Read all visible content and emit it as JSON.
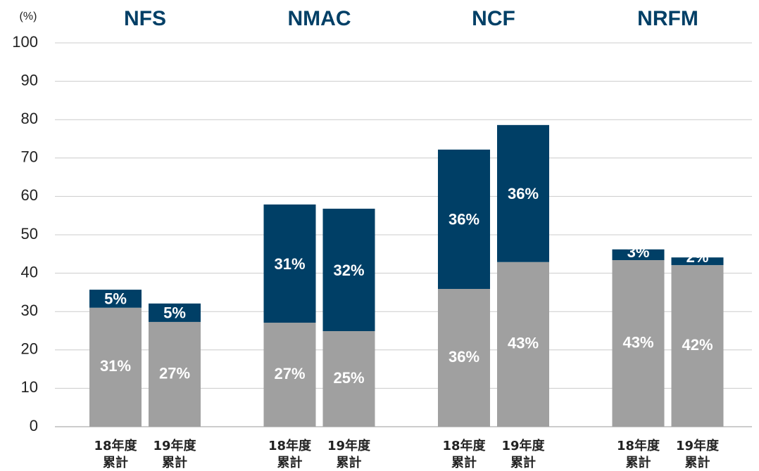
{
  "chart_data": {
    "type": "stacked_bar",
    "y_unit": "(%)",
    "groups": [
      "NFS",
      "NMAC",
      "NCF",
      "NRFM"
    ],
    "categories": [
      "18年度\n累計",
      "19年度\n累計",
      "18年度\n累計",
      "19年度\n累計",
      "18年度\n累計",
      "19年度\n累計",
      "18年度\n累計",
      "19年度\n累計"
    ],
    "series": [
      {
        "color": "#a0a0a0",
        "values": [
          31,
          27.3,
          27.1,
          24.9,
          35.9,
          42.9,
          43.4,
          42.1
        ],
        "value_labels": [
          "31%",
          "27%",
          "27%",
          "25%",
          "36%",
          "43%",
          "43%",
          "42%"
        ]
      },
      {
        "color": "#003f66",
        "values": [
          4.7,
          4.8,
          30.8,
          31.9,
          36.3,
          35.7,
          2.8,
          2.0
        ],
        "value_labels": [
          "5%",
          "5%",
          "31%",
          "32%",
          "36%",
          "36%",
          "3%",
          "2%"
        ]
      }
    ],
    "ylim": [
      0,
      100
    ],
    "yticks": [
      0,
      10,
      20,
      30,
      40,
      50,
      60,
      70,
      80,
      90,
      100
    ],
    "grid": true
  }
}
